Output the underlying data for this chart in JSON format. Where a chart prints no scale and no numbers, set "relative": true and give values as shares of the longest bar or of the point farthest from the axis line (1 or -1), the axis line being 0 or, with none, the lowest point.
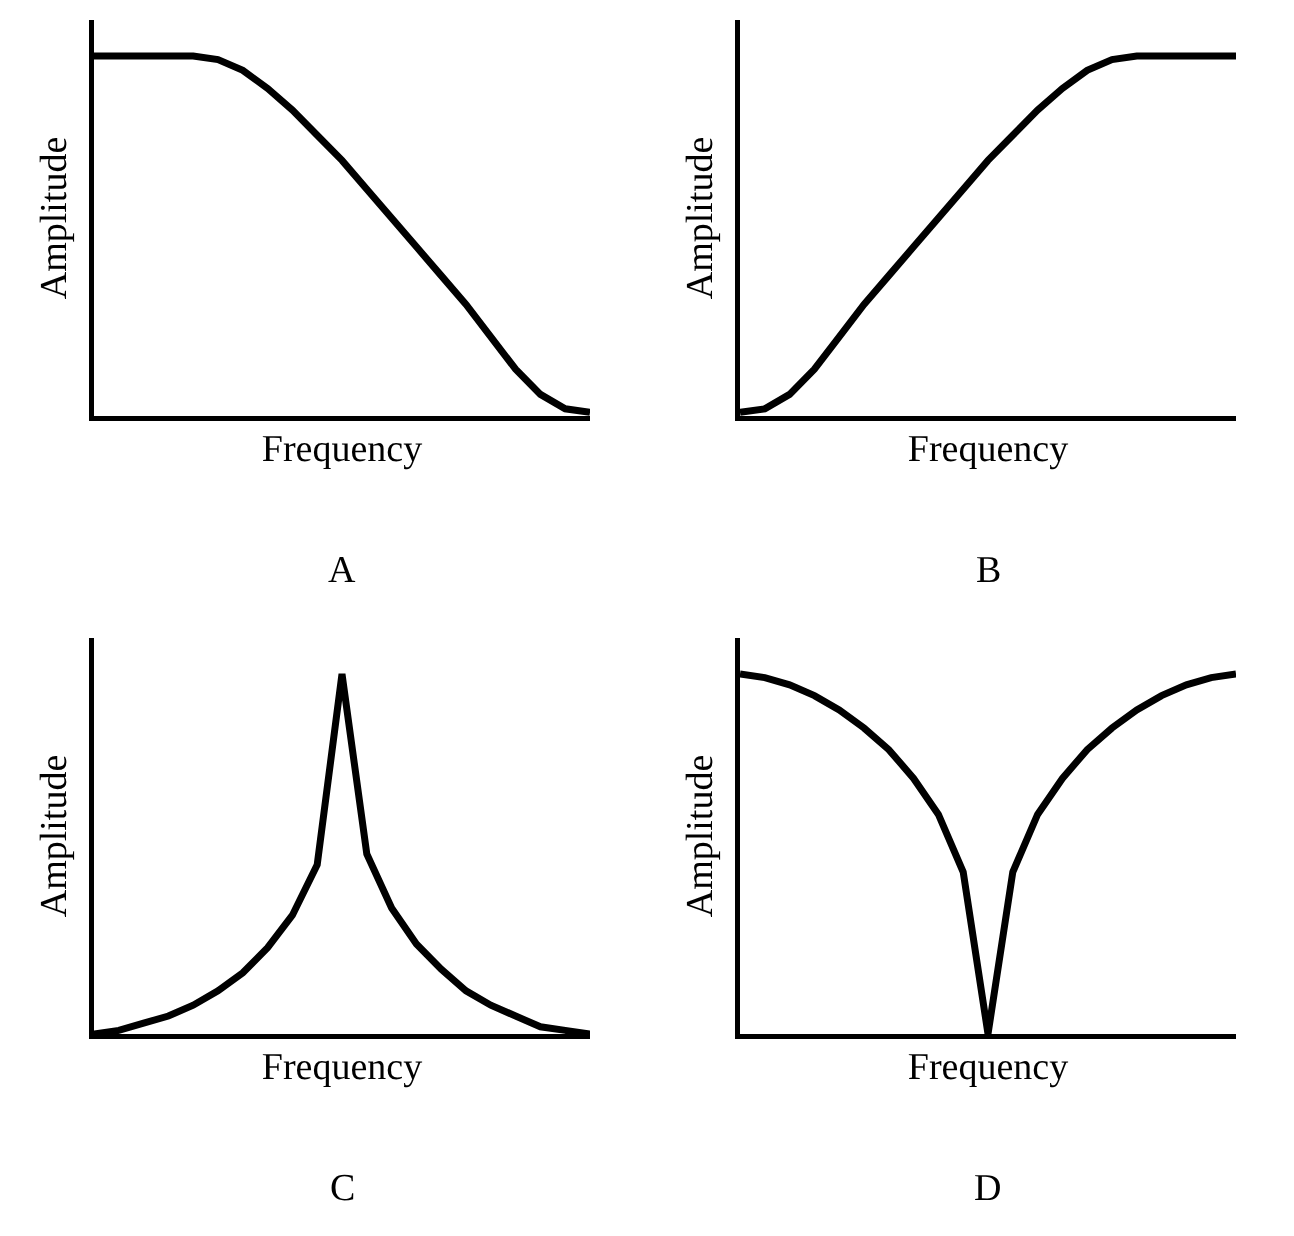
{
  "chart_data": [
    {
      "type": "line",
      "relative": true,
      "xlabel": "Frequency",
      "ylabel": "Amplitude",
      "annotations": [
        "A"
      ],
      "color": "#000000",
      "categories": [
        null,
        null,
        null,
        null,
        null,
        null,
        null,
        null,
        null,
        null,
        null,
        null,
        null,
        null,
        null,
        null,
        null,
        null,
        null,
        null,
        null
      ],
      "values": [
        1,
        1,
        1,
        1,
        1,
        0.99,
        0.96,
        0.91,
        0.85,
        0.78,
        0.71,
        0.63,
        0.55,
        0.47,
        0.39,
        0.31,
        0.22,
        0.13,
        0.06,
        0.02,
        0.01
      ]
    },
    {
      "type": "line",
      "relative": true,
      "xlabel": "Frequency",
      "ylabel": "Amplitude",
      "annotations": [
        "B"
      ],
      "color": "#000000",
      "categories": [
        null,
        null,
        null,
        null,
        null,
        null,
        null,
        null,
        null,
        null,
        null,
        null,
        null,
        null,
        null,
        null,
        null,
        null,
        null,
        null,
        null
      ],
      "values": [
        0.01,
        0.02,
        0.06,
        0.13,
        0.22,
        0.31,
        0.39,
        0.47,
        0.55,
        0.63,
        0.71,
        0.78,
        0.85,
        0.91,
        0.96,
        0.99,
        1,
        1,
        1,
        1,
        1
      ]
    },
    {
      "type": "line",
      "relative": true,
      "xlabel": "Frequency",
      "ylabel": "Amplitude",
      "annotations": [
        "C"
      ],
      "color": "#000000",
      "categories": [
        null,
        null,
        null,
        null,
        null,
        null,
        null,
        null,
        null,
        null,
        null,
        null,
        null,
        null,
        null,
        null,
        null,
        null,
        null,
        null,
        null
      ],
      "values": [
        0,
        0.01,
        0.03,
        0.05,
        0.08,
        0.12,
        0.17,
        0.24,
        0.33,
        0.47,
        1,
        0.5,
        0.35,
        0.25,
        0.18,
        0.12,
        0.08,
        0.05,
        0.02,
        0.01,
        0
      ]
    },
    {
      "type": "line",
      "relative": true,
      "xlabel": "Frequency",
      "ylabel": "Amplitude",
      "annotations": [
        "D"
      ],
      "color": "#000000",
      "categories": [
        null,
        null,
        null,
        null,
        null,
        null,
        null,
        null,
        null,
        null,
        null,
        null,
        null,
        null,
        null,
        null,
        null,
        null,
        null,
        null,
        null
      ],
      "values": [
        1,
        0.99,
        0.97,
        0.94,
        0.9,
        0.85,
        0.79,
        0.71,
        0.61,
        0.45,
        0,
        0.45,
        0.61,
        0.71,
        0.79,
        0.85,
        0.9,
        0.94,
        0.97,
        0.99,
        1
      ]
    }
  ]
}
